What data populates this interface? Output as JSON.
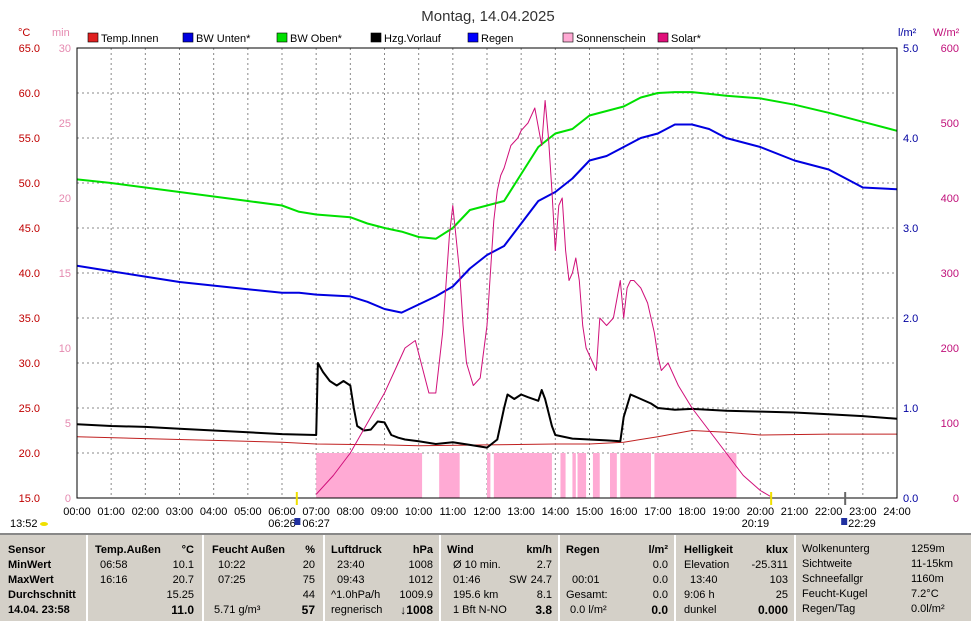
{
  "title": "Montag, 14.04.2025",
  "axes": {
    "left_temp_unit": "°C",
    "left_min_unit": "min",
    "right_rain_unit": "l/m²",
    "right_solar_unit": "W/m²",
    "temp_ticks": [
      "15.0",
      "20.0",
      "25.0",
      "30.0",
      "35.0",
      "40.0",
      "45.0",
      "50.0",
      "55.0",
      "60.0",
      "65.0"
    ],
    "min_ticks": [
      "0",
      "5",
      "10",
      "15",
      "20",
      "25",
      "30"
    ],
    "rain_ticks": [
      "0.0",
      "1.0",
      "2.0",
      "3.0",
      "4.0",
      "5.0"
    ],
    "solar_ticks": [
      "0",
      "100",
      "200",
      "300",
      "400",
      "500",
      "600"
    ],
    "x_ticks": [
      "00:00",
      "01:00",
      "02:00",
      "03:00",
      "04:00",
      "05:00",
      "06:00",
      "07:00",
      "08:00",
      "09:00",
      "10:00",
      "11:00",
      "12:00",
      "13:00",
      "14:00",
      "15:00",
      "16:00",
      "17:00",
      "18:00",
      "19:00",
      "20:00",
      "21:00",
      "22:00",
      "23:00",
      "24:00"
    ]
  },
  "markers": {
    "moon_left": "13:52",
    "sunrise": "06:26",
    "moonrise": "06:27",
    "sunset": "20:19",
    "moonset": "22:29"
  },
  "legend": [
    {
      "label": "Temp.Innen",
      "color": "#e02020"
    },
    {
      "label": "BW Unten*",
      "color": "#0000e0"
    },
    {
      "label": "BW Oben*",
      "color": "#00e000"
    },
    {
      "label": "Hzg.Vorlauf",
      "color": "#000000"
    },
    {
      "label": "Regen",
      "color": "#0000ff"
    },
    {
      "label": "Sonnenschein",
      "color": "#ffaad4"
    },
    {
      "label": "Solar*",
      "color": "#e0107a"
    }
  ],
  "chart_data": {
    "type": "line",
    "title": "Montag, 14.04.2025",
    "x_range_hours": [
      0,
      24
    ],
    "temp_ylim": [
      15,
      65
    ],
    "solar_ylim": [
      0,
      600
    ],
    "rain_ylim": [
      0,
      5
    ],
    "series": [
      {
        "name": "Temp.Innen",
        "color": "#c02020",
        "x": [
          0,
          2,
          4,
          6,
          7,
          9,
          10,
          12,
          14,
          15,
          16,
          17,
          18,
          19,
          20,
          22,
          24
        ],
        "values": [
          21.8,
          21.6,
          21.4,
          21.2,
          21.0,
          20.9,
          20.8,
          20.9,
          21.0,
          21.0,
          21.2,
          21.8,
          22.5,
          22.3,
          22.0,
          22.1,
          22.1
        ]
      },
      {
        "name": "BW Unten*",
        "color": "#0000e0",
        "x": [
          0,
          1,
          2,
          3,
          4,
          5,
          6,
          6.5,
          7,
          8,
          8.5,
          9,
          9.5,
          10,
          10.5,
          11,
          11.5,
          12,
          12.5,
          13,
          13.5,
          14,
          14.5,
          15,
          15.5,
          16,
          16.5,
          17,
          17.5,
          18,
          18.5,
          19,
          20,
          21,
          22,
          22.5,
          23,
          24
        ],
        "values": [
          40.8,
          40.2,
          39.6,
          39.0,
          38.6,
          38.2,
          37.8,
          37.8,
          37.6,
          37.4,
          36.8,
          36.0,
          35.6,
          36.5,
          37.4,
          38.5,
          40.5,
          42.0,
          43.0,
          45.5,
          48.0,
          49.0,
          50.5,
          52.5,
          53.0,
          54.0,
          55.0,
          55.5,
          56.5,
          56.5,
          56.0,
          55.0,
          54.0,
          52.5,
          51.5,
          50.5,
          49.5,
          49.3
        ]
      },
      {
        "name": "BW Oben*",
        "color": "#00e000",
        "x": [
          0,
          1,
          2,
          3,
          4,
          5,
          6,
          6.5,
          7,
          8,
          8.5,
          9,
          9.5,
          10,
          10.5,
          11,
          11.5,
          12,
          12.5,
          13,
          13.5,
          14,
          14.5,
          15,
          15.5,
          16,
          16.5,
          17,
          17.5,
          18,
          18.5,
          19,
          20,
          21,
          22,
          22.5,
          23,
          24
        ],
        "values": [
          50.4,
          50.0,
          49.5,
          49.0,
          48.5,
          48.0,
          47.5,
          46.8,
          46.5,
          46.2,
          45.5,
          45.0,
          44.6,
          44.0,
          43.8,
          45.0,
          47.0,
          47.5,
          48.0,
          51.0,
          54.0,
          55.5,
          56.0,
          57.5,
          58.0,
          58.5,
          59.5,
          60.0,
          60.1,
          60.1,
          59.9,
          59.7,
          59.4,
          58.7,
          57.8,
          57.3,
          56.8,
          55.8
        ]
      },
      {
        "name": "Hzg.Vorlauf",
        "color": "#000000",
        "x": [
          0,
          1,
          2,
          3,
          4,
          5,
          6,
          7.0,
          7.05,
          7.2,
          7.4,
          7.6,
          7.8,
          8.0,
          8.1,
          8.2,
          8.4,
          8.6,
          8.8,
          9.0,
          9.2,
          9.4,
          9.6,
          10.0,
          10.5,
          11,
          11.5,
          12,
          12.3,
          12.5,
          12.6,
          12.8,
          13.0,
          13.2,
          13.5,
          13.6,
          13.7,
          13.9,
          14.0,
          14.5,
          15,
          15.5,
          15.9,
          16.0,
          16.2,
          16.5,
          16.8,
          17.0,
          17.5,
          18,
          19,
          20,
          21,
          22,
          23,
          24
        ],
        "values": [
          23.2,
          23.0,
          22.9,
          22.7,
          22.5,
          22.3,
          22.1,
          22.0,
          30.0,
          29.0,
          28.0,
          27.5,
          28.0,
          27.5,
          25.0,
          23.0,
          22.5,
          22.6,
          23.5,
          23.4,
          22.0,
          21.7,
          21.5,
          21.3,
          21.0,
          21.2,
          20.9,
          20.6,
          21.5,
          25.0,
          26.5,
          26.0,
          26.5,
          26.2,
          25.8,
          27.0,
          26.0,
          23.0,
          22.0,
          21.6,
          21.5,
          21.4,
          21.3,
          24.0,
          26.5,
          26.0,
          25.5,
          25.0,
          24.8,
          24.9,
          24.7,
          24.6,
          24.5,
          24.3,
          24.1,
          23.8
        ]
      },
      {
        "name": "Solar*",
        "color": "#d0107a",
        "x": [
          7.0,
          7.5,
          8.0,
          8.5,
          9.0,
          9.3,
          9.6,
          9.9,
          10.1,
          10.3,
          10.5,
          10.7,
          10.9,
          11.0,
          11.2,
          11.3,
          11.4,
          11.6,
          11.8,
          12.0,
          12.2,
          12.3,
          12.4,
          12.5,
          12.7,
          12.9,
          13.0,
          13.2,
          13.4,
          13.6,
          13.7,
          13.8,
          13.9,
          14.0,
          14.1,
          14.2,
          14.3,
          14.4,
          14.5,
          14.6,
          14.7,
          14.8,
          14.9,
          15.0,
          15.2,
          15.3,
          15.5,
          15.7,
          15.9,
          16.0,
          16.1,
          16.2,
          16.3,
          16.5,
          16.7,
          16.9,
          17.0,
          17.1,
          17.3,
          17.6,
          18.0,
          18.5,
          19.0,
          19.5,
          20.0,
          20.3
        ],
        "values": [
          5,
          30,
          60,
          100,
          140,
          170,
          200,
          210,
          175,
          140,
          140,
          220,
          350,
          390,
          300,
          230,
          180,
          150,
          160,
          230,
          370,
          410,
          430,
          440,
          470,
          480,
          490,
          500,
          520,
          470,
          530,
          480,
          410,
          330,
          390,
          400,
          330,
          290,
          300,
          320,
          290,
          230,
          200,
          190,
          170,
          240,
          230,
          240,
          290,
          240,
          280,
          290,
          290,
          280,
          260,
          220,
          190,
          170,
          180,
          150,
          120,
          90,
          60,
          30,
          10,
          2
        ]
      }
    ],
    "sunshine_intervals": [
      [
        7.0,
        10.1
      ],
      [
        10.6,
        11.2
      ],
      [
        12.0,
        12.1
      ],
      [
        12.2,
        13.9
      ],
      [
        14.15,
        14.3
      ],
      [
        14.5,
        14.6
      ],
      [
        14.65,
        14.9
      ],
      [
        15.1,
        15.3
      ],
      [
        15.6,
        15.8
      ],
      [
        15.9,
        16.8
      ],
      [
        16.9,
        19.3
      ]
    ],
    "rain_values": []
  },
  "stats": {
    "sensor": {
      "header": "Sensor",
      "rows": [
        "MinWert",
        "MaxWert",
        "Durchschnitt",
        "14.04. 23:58"
      ]
    },
    "temp": {
      "header": "Temp.Außen",
      "unit": "°C",
      "rows": [
        [
          "06:58",
          "10.1"
        ],
        [
          "16:16",
          "20.7"
        ],
        [
          "",
          "15.25"
        ],
        [
          "",
          "11.0"
        ]
      ]
    },
    "humidity": {
      "header": "Feucht Außen",
      "unit": "%",
      "rows": [
        [
          "10:22",
          "20"
        ],
        [
          "07:25",
          "75"
        ],
        [
          "",
          "44"
        ],
        [
          "5.71 g/m³",
          "57"
        ]
      ]
    },
    "pressure": {
      "header": "Luftdruck",
      "unit": "hPa",
      "rows": [
        [
          "23:40",
          "1008"
        ],
        [
          "09:43",
          "1012"
        ],
        [
          "^1.0hPa/h",
          "1009.9"
        ],
        [
          "regnerisch",
          "↓1008"
        ]
      ]
    },
    "wind": {
      "header": "Wind",
      "unit": "km/h",
      "rows": [
        [
          "Ø 10 min.",
          "",
          "2.7"
        ],
        [
          "01:46",
          "SW",
          "24.7"
        ],
        [
          "195.6 km",
          "",
          "8.1"
        ],
        [
          "1 Bft N-NO",
          "",
          "3.8"
        ]
      ]
    },
    "rain": {
      "header": "Regen",
      "unit": "l/m²",
      "rows": [
        [
          "",
          "0.0"
        ],
        [
          "00:01",
          "0.0"
        ],
        [
          "Gesamt:",
          "0.0"
        ],
        [
          "0.0 l/m²",
          "0.0"
        ]
      ]
    },
    "brightness": {
      "header": "Helligkeit",
      "unit": "klux",
      "rows": [
        [
          "Elevation",
          "-25.311"
        ],
        [
          "13:40",
          "103"
        ],
        [
          "9:06 h",
          "25"
        ],
        [
          "dunkel",
          "0.000"
        ]
      ]
    },
    "extra": {
      "rows": [
        [
          "Wolkenunterg",
          "1259m"
        ],
        [
          "Sichtweite",
          "11-15km"
        ],
        [
          "Schneefallgr",
          "1160m"
        ],
        [
          "Feucht-Kugel",
          "7.2°C"
        ],
        [
          "Regen/Tag",
          "0.0l/m²"
        ]
      ]
    }
  }
}
